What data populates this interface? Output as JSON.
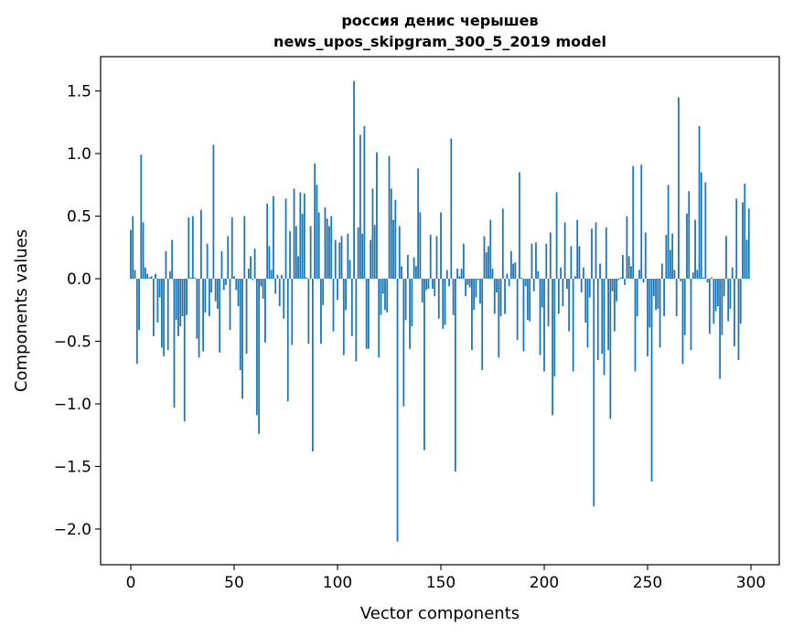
{
  "chart_data": {
    "type": "bar",
    "title": "россия денис черышев",
    "subtitle": "news_upos_skipgram_300_5_2019 model",
    "xlabel": "Vector components",
    "ylabel": "Components values",
    "xlim": [
      -14.6,
      313.7
    ],
    "ylim": [
      -2.285,
      1.774
    ],
    "grid": false,
    "bar_color": "#1f77b4",
    "xticks": [
      0,
      50,
      100,
      150,
      200,
      250,
      300
    ],
    "xtick_labels": [
      "0",
      "50",
      "100",
      "150",
      "200",
      "250",
      "300"
    ],
    "yticks": [
      -2.0,
      -1.5,
      -1.0,
      -0.5,
      0.0,
      0.5,
      1.0,
      1.5
    ],
    "ytick_labels": [
      "−2.0",
      "−1.5",
      "−1.0",
      "−0.5",
      "0.0",
      "0.5",
      "1.0",
      "1.5"
    ],
    "values": [
      0.39,
      0.5,
      0.07,
      -0.68,
      -0.41,
      0.99,
      0.45,
      0.09,
      0.04,
      0.01,
      0.02,
      -0.46,
      0.04,
      -0.35,
      -0.15,
      -0.55,
      -0.62,
      0.22,
      -0.57,
      0.06,
      0.31,
      -1.03,
      -0.33,
      -0.46,
      -0.38,
      -0.3,
      -1.14,
      -0.29,
      0.49,
      0.01,
      0.5,
      0.01,
      -0.48,
      -0.63,
      0.55,
      -0.58,
      -0.27,
      0.28,
      -0.3,
      -0.11,
      1.07,
      -0.18,
      -0.24,
      -0.59,
      0.22,
      -0.09,
      -0.05,
      0.34,
      -0.41,
      0.49,
      0.02,
      -0.09,
      -0.22,
      -0.73,
      -0.96,
      0.5,
      -0.6,
      0.08,
      0.18,
      -0.01,
      0.24,
      -1.09,
      -1.24,
      -0.06,
      -0.16,
      -0.51,
      0.6,
      0.26,
      0.07,
      0.66,
      -0.12,
      0.03,
      -0.22,
      0.03,
      -0.32,
      0.64,
      -0.98,
      0.38,
      -0.53,
      0.72,
      0.42,
      0.18,
      0.69,
      0.52,
      0.68,
      0.01,
      -0.52,
      0.42,
      -1.38,
      0.92,
      0.75,
      0.53,
      -0.52,
      -0.21,
      0.57,
      0.48,
      0.42,
      0.5,
      -0.42,
      0.31,
      -0.17,
      0.29,
      0.34,
      -0.61,
      -0.25,
      0.36,
      0.15,
      -0.46,
      1.58,
      -0.66,
      0.41,
      1.15,
      0.36,
      1.22,
      -0.56,
      -0.56,
      0.31,
      0.72,
      0.43,
      1.01,
      -0.63,
      -0.29,
      -0.12,
      -0.25,
      -0.27,
      0.98,
      0.72,
      0.47,
      0.63,
      -2.1,
      0.42,
      0.1,
      -1.02,
      -0.33,
      0.19,
      -0.56,
      -0.38,
      0.17,
      0.1,
      0.88,
      0.53,
      -0.19,
      -1.37,
      -0.09,
      -0.08,
      0.35,
      -0.08,
      -0.14,
      0.34,
      -0.32,
      0.53,
      -0.4,
      -0.37,
      0.07,
      -0.06,
      1.12,
      -0.29,
      -1.54,
      0.08,
      0.02,
      0.08,
      0.28,
      -0.14,
      -0.05,
      -0.07,
      -0.57,
      -0.25,
      -0.15,
      -0.01,
      -0.2,
      -0.73,
      0.34,
      0.21,
      0.26,
      0.47,
      0.08,
      -0.28,
      -0.11,
      -0.63,
      -0.3,
      0.56,
      -0.28,
      0.04,
      -0.06,
      0.22,
      0.12,
      0.13,
      -0.49,
      0.85,
      0.01,
      -0.58,
      -0.06,
      -0.33,
      -0.34,
      0.28,
      -0.1,
      0.29,
      0.06,
      -0.61,
      -0.23,
      -0.74,
      0.28,
      -0.38,
      0.37,
      -1.09,
      -0.78,
      0.69,
      -0.28,
      0.09,
      -0.22,
      0.45,
      -0.08,
      -0.42,
      0.26,
      -0.74,
      0.02,
      0.47,
      0.26,
      -0.11,
      0.09,
      -0.35,
      -0.55,
      -0.15,
      0.4,
      -1.82,
      0.45,
      -0.65,
      0.12,
      -0.6,
      -0.77,
      0.41,
      -0.57,
      -1.12,
      -0.1,
      -0.42,
      -0.18,
      -0.01,
      0.01,
      0.19,
      -0.05,
      0.5,
      0.18,
      0.1,
      0.9,
      -0.74,
      -0.3,
      0.07,
      0.91,
      -0.03,
      0.37,
      -0.62,
      -0.39,
      -1.62,
      -0.14,
      -0.25,
      -0.24,
      -0.55,
      0.12,
      -0.3,
      0.35,
      0.75,
      0.23,
      0.36,
      0.07,
      -0.3,
      1.45,
      -0.02,
      -0.68,
      -0.45,
      0.52,
      0.7,
      -0.57,
      0.05,
      0.47,
      0.07,
      1.22,
      0.85,
      0.01,
      0.77,
      -0.03,
      -0.44,
      0.01,
      -0.36,
      -0.26,
      -0.22,
      -0.8,
      -0.45,
      -0.14,
      0.34,
      -0.34,
      -0.24,
      0.09,
      -0.54,
      0.64,
      -0.65,
      -0.36,
      0.61,
      0.76,
      0.31,
      0.56
    ]
  }
}
